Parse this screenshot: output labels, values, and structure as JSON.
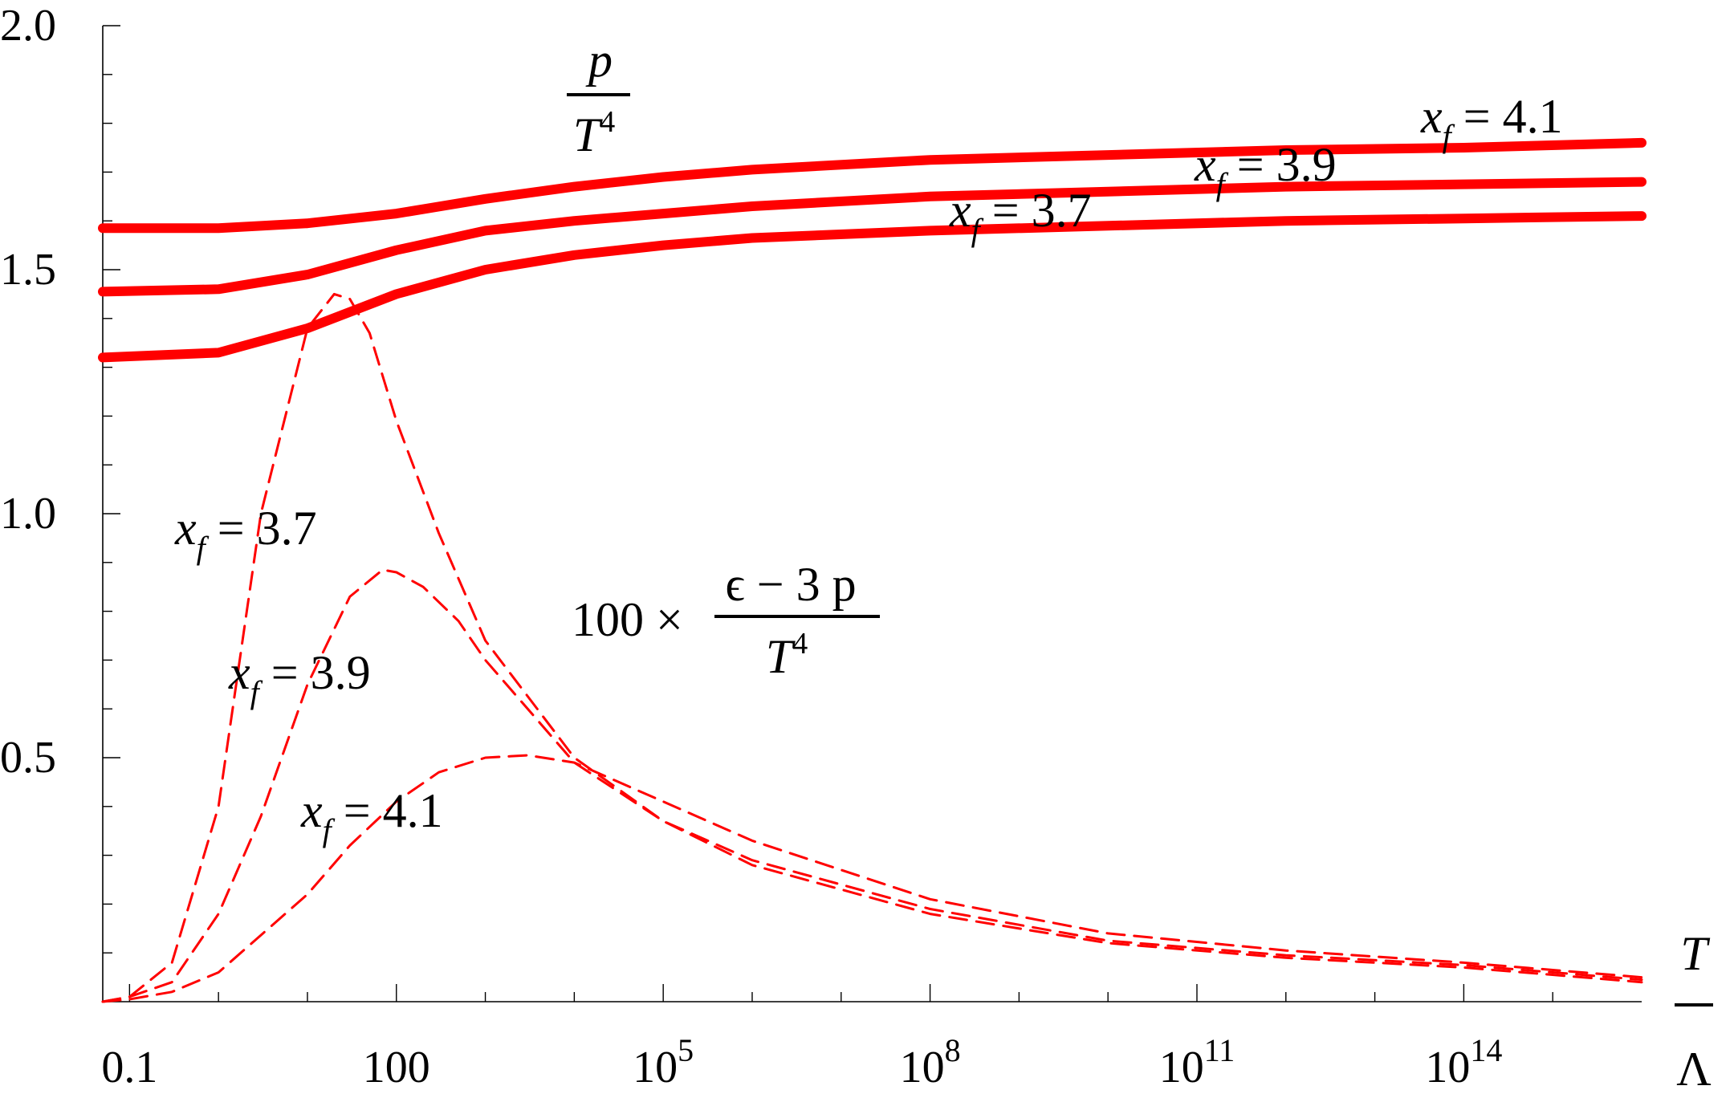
{
  "chart_data": {
    "type": "line",
    "x_scale": "log10",
    "xlim": [
      0.05,
      1e+16
    ],
    "ylim": [
      0,
      2.0
    ],
    "grid": false,
    "xticks_major": [
      0.1,
      100,
      100000,
      100000000,
      100000000000,
      100000000000000
    ],
    "x_tick_labels": [
      {
        "base": "0.1",
        "exp": ""
      },
      {
        "base": "100",
        "exp": ""
      },
      {
        "base": "10",
        "exp": "5"
      },
      {
        "base": "10",
        "exp": "8"
      },
      {
        "base": "10",
        "exp": "11"
      },
      {
        "base": "10",
        "exp": "14"
      }
    ],
    "yticks_major": [
      0.5,
      1.0,
      1.5,
      2.0
    ],
    "y_tick_labels": [
      "0.5",
      "1.0",
      "1.5",
      "2.0"
    ],
    "xlabel": {
      "numerator": "T",
      "denominator": "Λ"
    },
    "color": "#ff0000",
    "series": [
      {
        "style": "solid",
        "x": [
          0.05,
          1,
          10,
          100,
          1000,
          10000.0,
          100000.0,
          1000000.0,
          100000000.0,
          10000000000.0,
          1000000000000.0,
          100000000000000.0,
          1e+16
        ],
        "y": [
          1.32,
          1.33,
          1.38,
          1.45,
          1.5,
          1.53,
          1.55,
          1.565,
          1.58,
          1.59,
          1.6,
          1.605,
          1.61
        ]
      },
      {
        "style": "solid",
        "x": [
          0.05,
          1,
          10,
          100,
          1000,
          10000.0,
          100000.0,
          1000000.0,
          100000000.0,
          10000000000.0,
          1000000000000.0,
          100000000000000.0,
          1e+16
        ],
        "y": [
          1.455,
          1.46,
          1.49,
          1.54,
          1.58,
          1.6,
          1.615,
          1.63,
          1.65,
          1.66,
          1.67,
          1.675,
          1.68
        ]
      },
      {
        "style": "solid",
        "x": [
          0.05,
          1,
          10,
          100,
          1000,
          10000.0,
          100000.0,
          1000000.0,
          100000000.0,
          10000000000.0,
          1000000000000.0,
          100000000000000.0,
          1e+16
        ],
        "y": [
          1.585,
          1.585,
          1.595,
          1.615,
          1.645,
          1.67,
          1.69,
          1.705,
          1.725,
          1.735,
          1.745,
          1.75,
          1.76
        ]
      },
      {
        "style": "dashed",
        "x": [
          0.05,
          0.1,
          0.3,
          1,
          3,
          10,
          20,
          30,
          50,
          100,
          300,
          1000,
          10000.0,
          100000.0,
          1000000.0,
          100000000.0,
          10000000000.0,
          1000000000000.0,
          100000000000000.0,
          1e+16
        ],
        "y": [
          0.0,
          0.01,
          0.08,
          0.4,
          1.0,
          1.38,
          1.45,
          1.44,
          1.37,
          1.19,
          0.96,
          0.74,
          0.5,
          0.37,
          0.28,
          0.18,
          0.12,
          0.09,
          0.07,
          0.04
        ]
      },
      {
        "style": "dashed",
        "x": [
          0.05,
          0.1,
          0.3,
          1,
          3,
          10,
          30,
          70,
          100,
          200,
          500,
          1000,
          10000.0,
          100000.0,
          1000000.0,
          100000000.0,
          10000000000.0,
          1000000000000.0,
          100000000000000.0,
          1e+16
        ],
        "y": [
          0.0,
          0.01,
          0.04,
          0.18,
          0.38,
          0.65,
          0.83,
          0.885,
          0.88,
          0.85,
          0.78,
          0.7,
          0.49,
          0.37,
          0.29,
          0.19,
          0.125,
          0.095,
          0.075,
          0.045
        ]
      },
      {
        "style": "dashed",
        "x": [
          0.05,
          0.1,
          0.3,
          1,
          10,
          30,
          100,
          300,
          1000,
          3000,
          10000.0,
          100000.0,
          1000000.0,
          100000000.0,
          10000000000.0,
          1000000000000.0,
          100000000000000.0,
          1e+16
        ],
        "y": [
          0.0,
          0.005,
          0.02,
          0.06,
          0.22,
          0.32,
          0.41,
          0.47,
          0.5,
          0.505,
          0.49,
          0.41,
          0.33,
          0.21,
          0.14,
          0.105,
          0.08,
          0.05
        ]
      }
    ]
  },
  "annotations": {
    "p_over_T4": {
      "num": "p",
      "den": "T",
      "den_exp": "4"
    },
    "trace": {
      "prefix": "100 ×",
      "num": "ϵ − 3 p",
      "den": "T",
      "den_exp": "4"
    },
    "labels": [
      {
        "var": "x",
        "sub": "f",
        "text": " = 4.1"
      },
      {
        "var": "x",
        "sub": "f",
        "text": " = 3.9"
      },
      {
        "var": "x",
        "sub": "f",
        "text": " = 3.7"
      },
      {
        "var": "x",
        "sub": "f",
        "text": " = 3.7"
      },
      {
        "var": "x",
        "sub": "f",
        "text": " = 3.9"
      },
      {
        "var": "x",
        "sub": "f",
        "text": " = 4.1"
      }
    ]
  }
}
